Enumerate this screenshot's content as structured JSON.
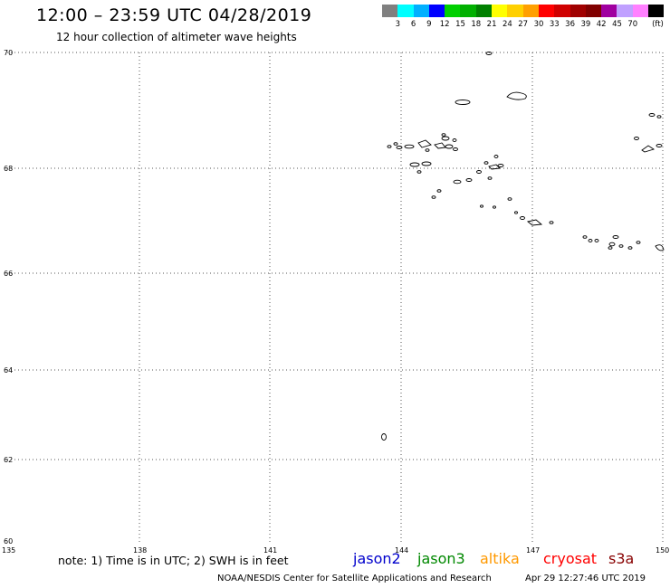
{
  "title": "12:00 – 23:59 UTC 04/28/2019",
  "subtitle": "12 hour collection of altimeter wave heights",
  "colorbar": {
    "colors": [
      "#808080",
      "#00ffff",
      "#00b0ff",
      "#0000ff",
      "#00d000",
      "#00b000",
      "#008000",
      "#ffff00",
      "#ffd000",
      "#ffa000",
      "#ff0000",
      "#d00000",
      "#a00000",
      "#800000",
      "#a000a0",
      "#c0a0ff",
      "#ff80ff",
      "#000000"
    ],
    "labels": [
      "3",
      "6",
      "9",
      "12",
      "15",
      "18",
      "21",
      "24",
      "27",
      "30",
      "33",
      "36",
      "39",
      "42",
      "45",
      "70"
    ],
    "unit": "(ft)"
  },
  "map": {
    "lat_labels": [
      "70",
      "68",
      "66",
      "64",
      "62",
      "60"
    ],
    "lon_labels": [
      "135",
      "138",
      "141",
      "144",
      "147",
      "150"
    ]
  },
  "note": "note: 1) Time is in UTC; 2) SWH is in feet",
  "satellites": [
    {
      "name": "jason2",
      "color": "#0000cc"
    },
    {
      "name": "jason3",
      "color": "#008800"
    },
    {
      "name": "altika",
      "color": "#ff9900"
    },
    {
      "name": "cryosat",
      "color": "#ff0000"
    },
    {
      "name": "s3a",
      "color": "#880000"
    }
  ],
  "credit": "NOAA/NESDIS Center for Satellite Applications and Research",
  "timestamp": "Apr 29 12:27:46 UTC 2019"
}
